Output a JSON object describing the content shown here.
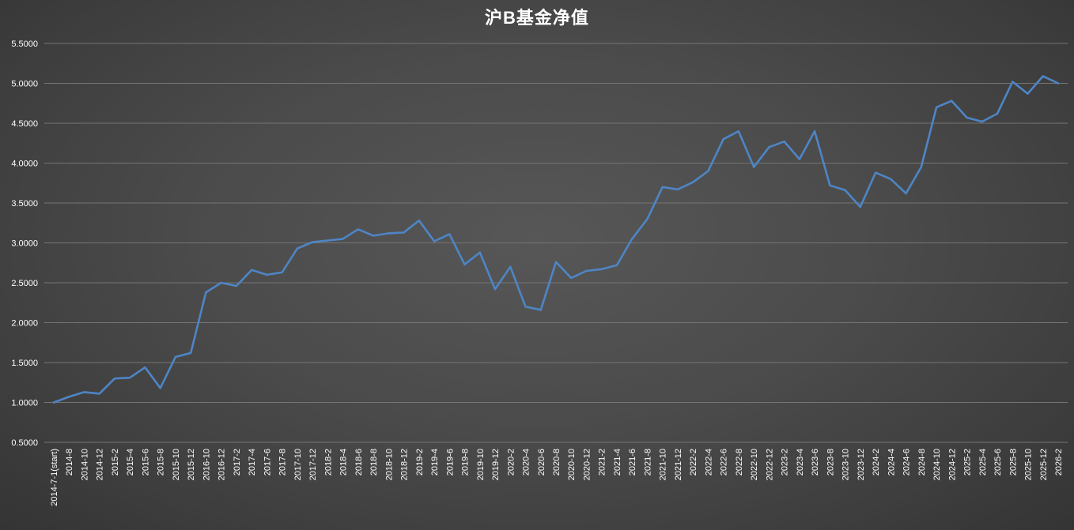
{
  "colors": {
    "line": "#4e85c5",
    "grid": "#757575",
    "text": "#ffffff",
    "background_center": "#575757",
    "background_edge": "#343434"
  },
  "chart_data": {
    "type": "line",
    "title": "沪B基金净值",
    "legend": "none",
    "grid": true,
    "x_label_rotation": -90,
    "ylim": [
      0.5,
      5.5
    ],
    "ytick_step": 0.5,
    "ytick_labels": [
      "5.5000",
      "5.0000",
      "4.5000",
      "4.0000",
      "3.5000",
      "3.0000",
      "2.5000",
      "2.0000",
      "1.5000",
      "1.0000",
      "0.5000"
    ],
    "categories": [
      "2014-7-1(start)",
      "2014-8",
      "2014-10",
      "2014-12",
      "2015-2",
      "2015-4",
      "2015-6",
      "2015-8",
      "2015-10",
      "2015-12",
      "2016-10",
      "2016-12",
      "2017-2",
      "2017-4",
      "2017-6",
      "2017-8",
      "2017-10",
      "2017-12",
      "2018-2",
      "2018-4",
      "2018-6",
      "2018-8",
      "2018-10",
      "2018-12",
      "2019-2",
      "2019-4",
      "2019-6",
      "2019-8",
      "2019-10",
      "2019-12",
      "2020-2",
      "2020-4",
      "2020-6",
      "2020-8",
      "2020-10",
      "2020-12",
      "2021-2",
      "2021-4",
      "2021-6",
      "2021-8",
      "2021-10",
      "2021-12",
      "2022-2",
      "2022-4",
      "2022-6",
      "2022-8",
      "2022-10",
      "2022-12",
      "2023-2",
      "2023-4",
      "2023-6",
      "2023-8",
      "2023-10",
      "2023-12",
      "2024-2",
      "2024-4",
      "2024-6",
      "2024-8",
      "2024-10",
      "2024-12",
      "2025-2",
      "2025-4",
      "2025-6",
      "2025-8",
      "2025-10",
      "2025-12",
      "2026-2"
    ],
    "values": [
      1.0,
      1.07,
      1.13,
      1.11,
      1.3,
      1.31,
      1.44,
      1.18,
      1.57,
      1.62,
      2.38,
      2.5,
      2.46,
      2.66,
      2.6,
      2.63,
      2.93,
      3.01,
      3.03,
      3.05,
      3.17,
      3.09,
      3.12,
      3.13,
      3.28,
      3.02,
      3.11,
      2.73,
      2.88,
      2.42,
      2.7,
      2.2,
      2.16,
      2.76,
      2.56,
      2.65,
      2.67,
      2.72,
      3.05,
      3.3,
      3.7,
      3.67,
      3.76,
      3.9,
      4.3,
      4.4,
      3.95,
      4.2,
      4.27,
      4.05,
      4.4,
      3.72,
      3.66,
      3.45,
      3.88,
      3.8,
      3.62,
      3.95,
      4.7,
      4.78,
      4.57,
      4.52,
      4.62,
      5.02,
      4.87,
      5.09,
      5.0
    ]
  }
}
